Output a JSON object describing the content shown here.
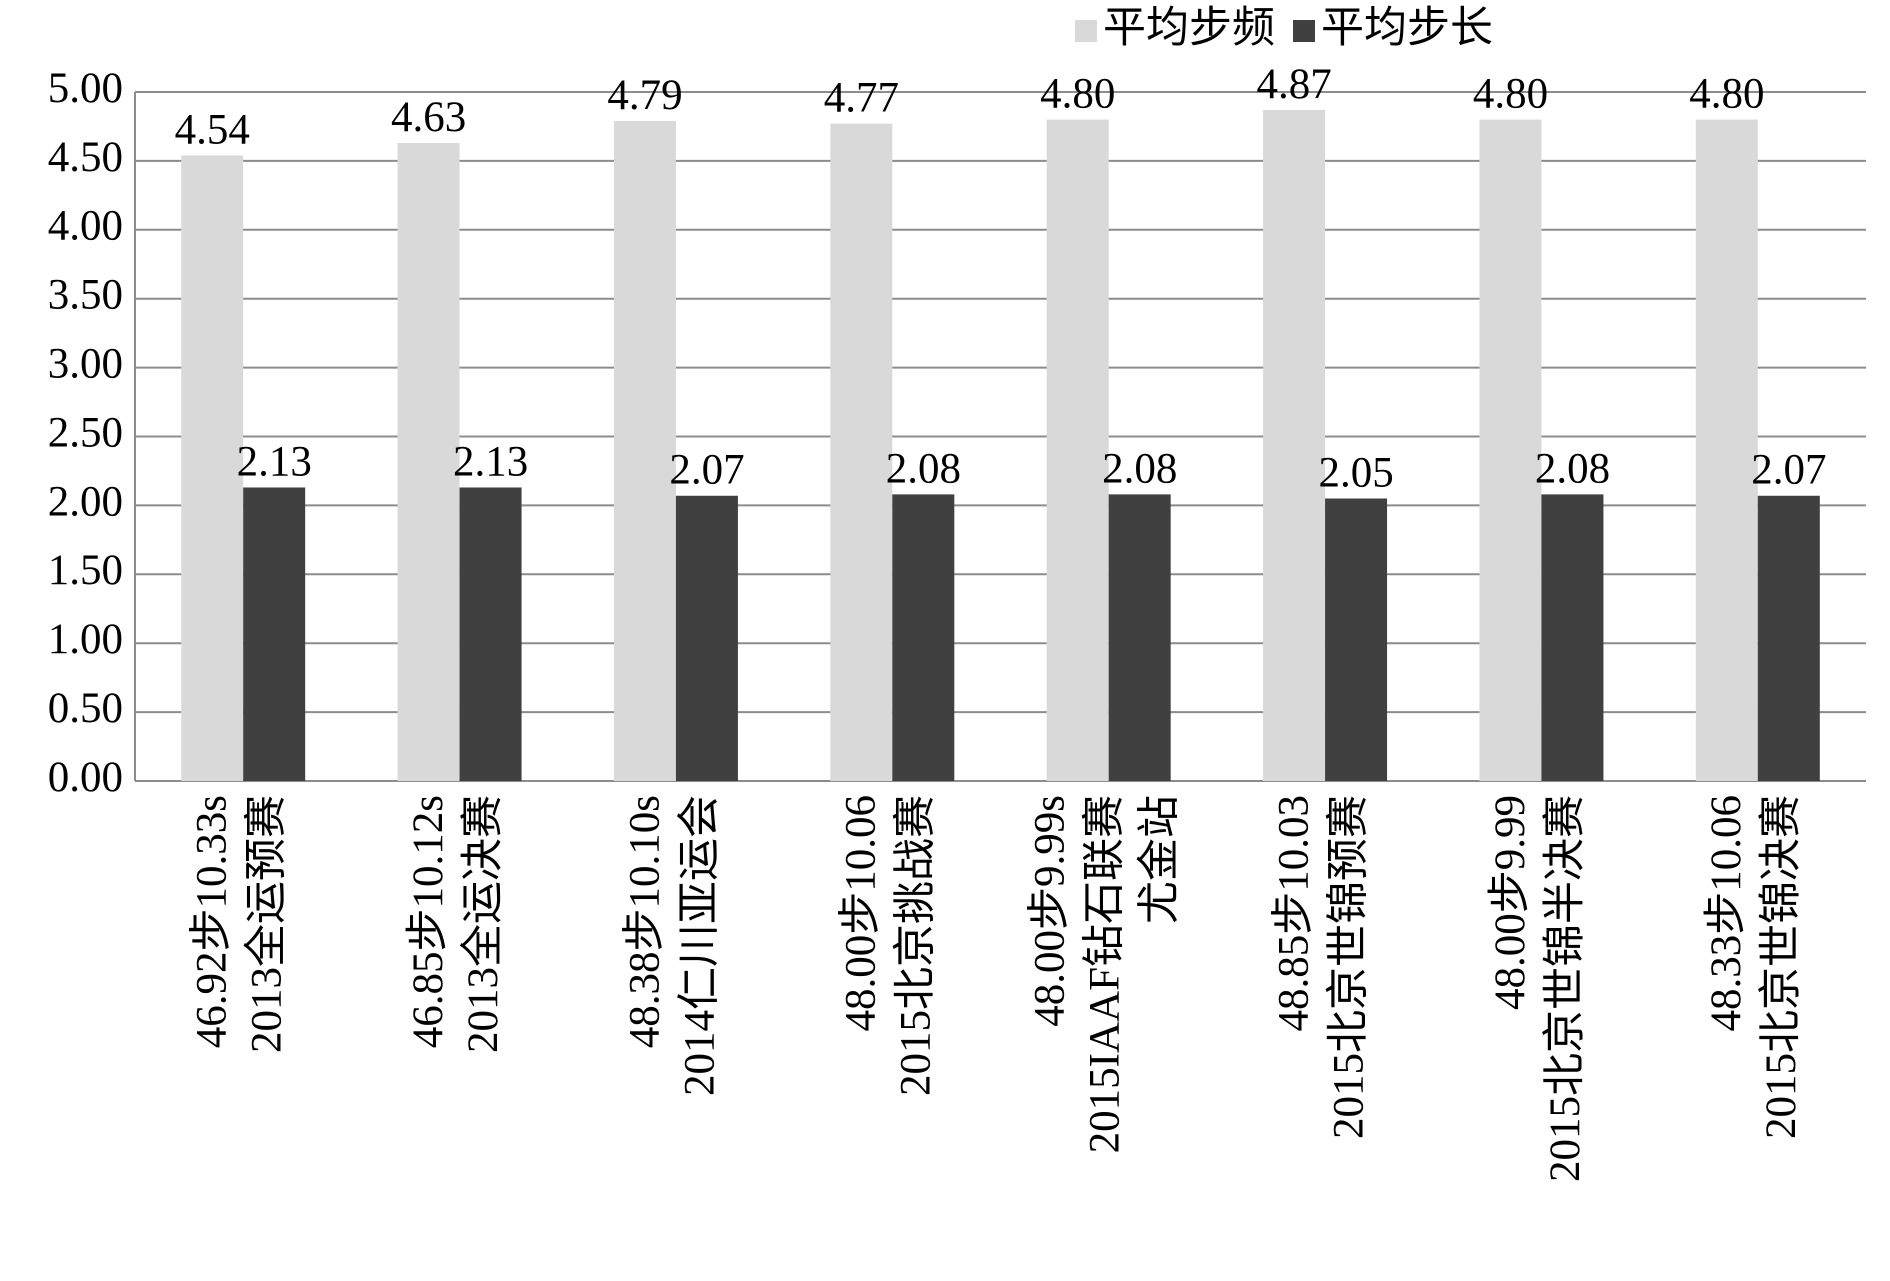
{
  "chart_data": {
    "type": "bar",
    "categories": [
      [
        "46.92步10.33s",
        "2013全运预赛"
      ],
      [
        "46.85步10.12s",
        "2013全运决赛"
      ],
      [
        "48.38步10.10s",
        "2014仁川亚运会"
      ],
      [
        "48.00步10.06",
        "2015北京挑战赛"
      ],
      [
        "48.00步9.99s",
        "2015IAAF钻石联赛",
        "尤金站"
      ],
      [
        "48.85步10.03",
        "2015北京世锦预赛"
      ],
      [
        "48.00步9.99",
        "2015北京世锦半决赛"
      ],
      [
        "48.33步10.06",
        "2015北京世锦决赛"
      ]
    ],
    "series": [
      {
        "name": "平均步频",
        "color": "#d9d9d9",
        "values": [
          4.54,
          4.63,
          4.79,
          4.77,
          4.8,
          4.87,
          4.8,
          4.8
        ],
        "value_labels": [
          "4.54",
          "4.63",
          "4.79",
          "4.77",
          "4.80",
          "4.87",
          "4.80",
          "4.80"
        ]
      },
      {
        "name": "平均步长",
        "color": "#404040",
        "values": [
          2.13,
          2.13,
          2.07,
          2.08,
          2.08,
          2.05,
          2.08,
          2.07
        ],
        "value_labels": [
          "2.13",
          "2.13",
          "2.07",
          "2.08",
          "2.08",
          "2.05",
          "2.08",
          "2.07"
        ]
      }
    ],
    "ylim": [
      0,
      5
    ],
    "yticks": [
      {
        "value": 0,
        "label": "0.00"
      },
      {
        "value": 0.5,
        "label": "0.50"
      },
      {
        "value": 1,
        "label": "1.00"
      },
      {
        "value": 1.5,
        "label": "1.50"
      },
      {
        "value": 2,
        "label": "2.00"
      },
      {
        "value": 2.5,
        "label": "2.50"
      },
      {
        "value": 3,
        "label": "3.00"
      },
      {
        "value": 3.5,
        "label": "3.50"
      },
      {
        "value": 4,
        "label": "4.00"
      },
      {
        "value": 4.5,
        "label": "4.50"
      },
      {
        "value": 5,
        "label": "5.00"
      }
    ],
    "grid": true,
    "legend": "top-right"
  }
}
